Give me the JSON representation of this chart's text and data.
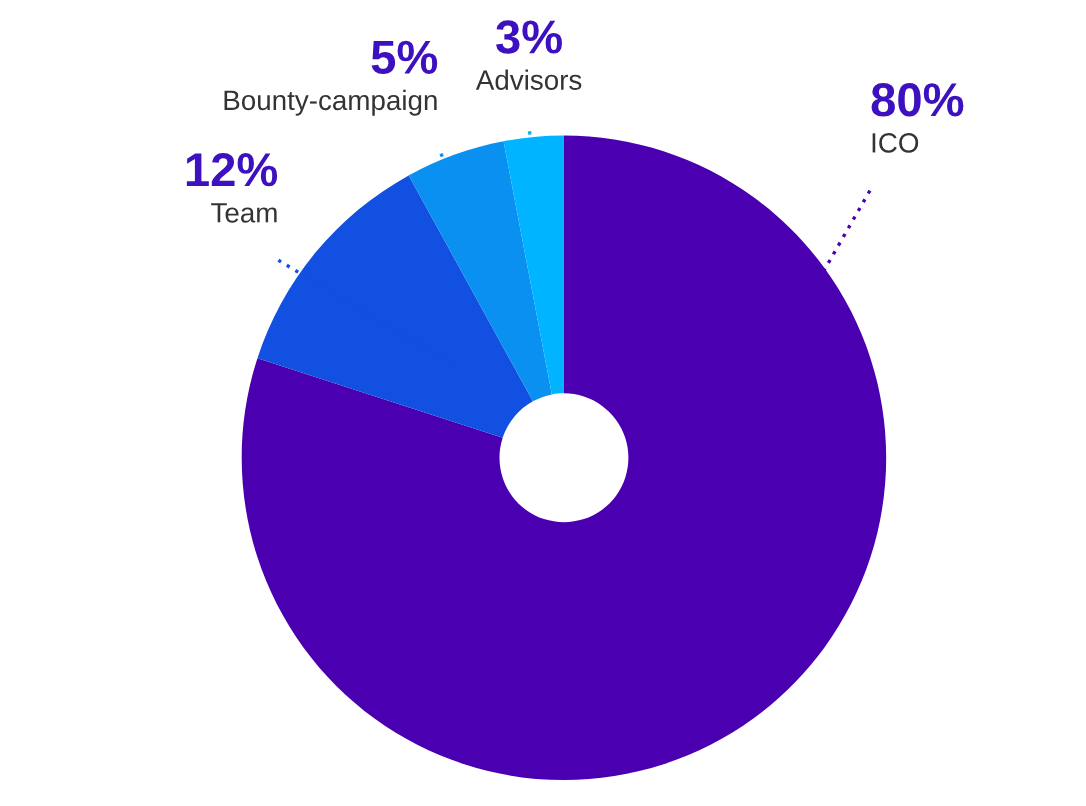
{
  "chart_data": {
    "type": "donut",
    "categories": [
      "ICO",
      "Team",
      "Bounty-campaign",
      "Advisors"
    ],
    "values": [
      80,
      12,
      5,
      3
    ],
    "value_labels": [
      "80%",
      "12%",
      "5%",
      "3%"
    ],
    "colors": [
      "#4a00b0",
      "#1150e0",
      "#0a90f0",
      "#00b4ff"
    ],
    "legend": false
  }
}
